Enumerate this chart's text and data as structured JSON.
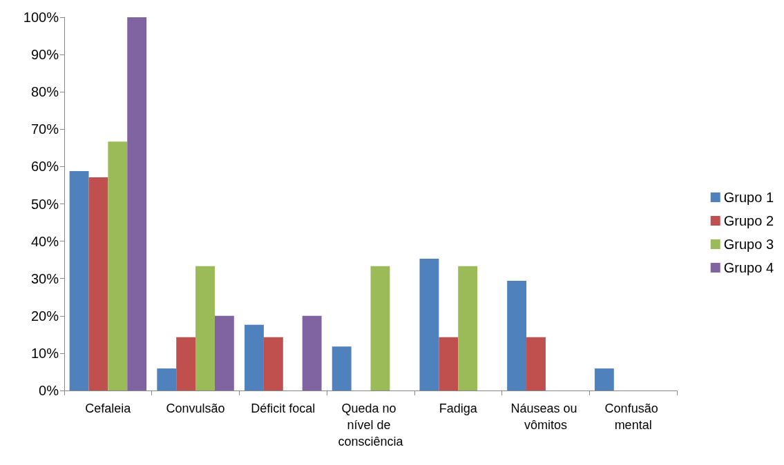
{
  "chart_data": {
    "type": "bar",
    "categories": [
      "Cefaleia",
      "Convulsão",
      "Déficit focal",
      "Queda no nível de consciência",
      "Fadiga",
      "Náuseas ou vômitos",
      "Confusão mental"
    ],
    "series": [
      {
        "name": "Grupo 1",
        "color": "#4f81bd",
        "values": [
          58.8,
          5.9,
          17.6,
          11.8,
          35.3,
          29.4,
          5.9
        ]
      },
      {
        "name": "Grupo 2",
        "color": "#c0504d",
        "values": [
          57.1,
          14.3,
          14.3,
          0,
          14.3,
          14.3,
          0
        ]
      },
      {
        "name": "Grupo 3",
        "color": "#9bbb59",
        "values": [
          66.7,
          33.3,
          0,
          33.3,
          33.3,
          0,
          0
        ]
      },
      {
        "name": "Grupo 4",
        "color": "#8064a2",
        "values": [
          100,
          20,
          20,
          0,
          0,
          0,
          0
        ]
      }
    ],
    "ylim": [
      0,
      100
    ],
    "yticks": [
      {
        "value": 0,
        "label": "0%"
      },
      {
        "value": 10,
        "label": "10%"
      },
      {
        "value": 20,
        "label": "20%"
      },
      {
        "value": 30,
        "label": "30%"
      },
      {
        "value": 40,
        "label": "40%"
      },
      {
        "value": 50,
        "label": "50%"
      },
      {
        "value": 60,
        "label": "60%"
      },
      {
        "value": 70,
        "label": "70%"
      },
      {
        "value": 80,
        "label": "80%"
      },
      {
        "value": 90,
        "label": "90%"
      },
      {
        "value": 100,
        "label": "100%"
      }
    ],
    "grid": false,
    "legend": "right"
  }
}
